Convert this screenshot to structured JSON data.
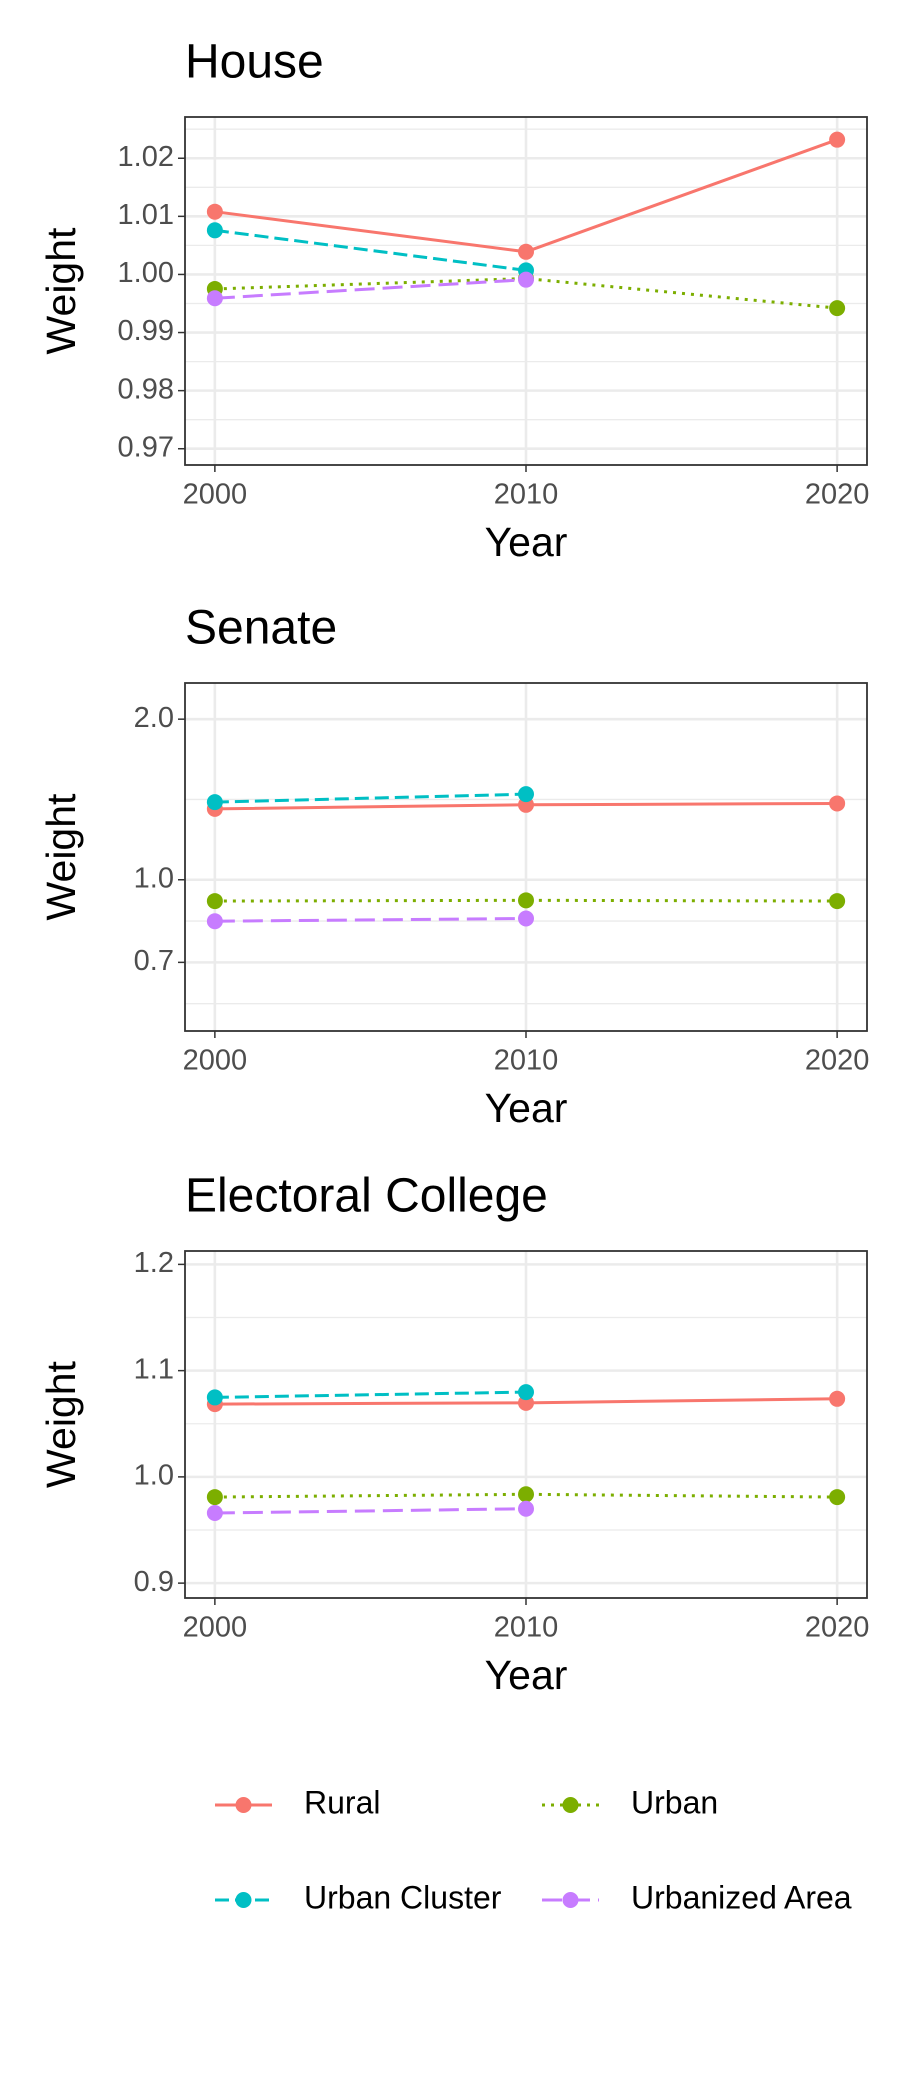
{
  "legend": {
    "position": "bottom",
    "items": [
      {
        "name": "Rural",
        "color": "#F8766D",
        "linetype": "solid"
      },
      {
        "name": "Urban",
        "color": "#7CAE00",
        "linetype": "dotted"
      },
      {
        "name": "Urban Cluster",
        "color": "#00BFC4",
        "linetype": "dashed"
      },
      {
        "name": "Urbanized Area",
        "color": "#C77CFF",
        "linetype": "longdash"
      }
    ]
  },
  "chart_data": [
    {
      "type": "line",
      "title": "House",
      "x_label": "Year",
      "y_label": "Weight",
      "x": [
        2000,
        2010,
        2020
      ],
      "xlim": [
        1999.04,
        2020.96
      ],
      "xticks": [
        2000,
        2010,
        2020
      ],
      "ylim": [
        0.9672,
        1.0271
      ],
      "yticks": [
        0.97,
        0.98,
        0.99,
        {
          "value": 1,
          "label": "1.00"
        },
        1.01,
        1.02
      ],
      "grid": true,
      "series": [
        {
          "values": [
            1.0108,
            1.0039,
            1.0232
          ]
        },
        {
          "values": [
            0.9975,
            0.9993,
            0.9942
          ]
        },
        {
          "values": [
            1.0076,
            1.0007,
            null
          ]
        },
        {
          "values": [
            0.9959,
            0.9991,
            null
          ]
        }
      ]
    },
    {
      "type": "line",
      "title": "Senate",
      "x_label": "Year",
      "y_label": "Weight",
      "x": [
        2000,
        2010,
        2020
      ],
      "xlim": [
        1999.04,
        2020.96
      ],
      "xticks": [
        2000,
        2010,
        2020
      ],
      "ylim": [
        0.5205,
        2.338
      ],
      "yticks": [
        0.7,
        {
          "value": 1,
          "label": "1.0"
        },
        {
          "value": 2,
          "label": "2.0"
        }
      ],
      "log_scale": true,
      "grid": true,
      "series": [
        {
          "values": [
            1.358,
            1.382,
            1.39
          ]
        },
        {
          "values": [
            0.912,
            0.915,
            0.912
          ]
        },
        {
          "values": [
            1.398,
            1.447,
            null
          ]
        },
        {
          "values": [
            0.836,
            0.846,
            null
          ]
        }
      ]
    },
    {
      "type": "line",
      "title": "Electoral College",
      "x_label": "Year",
      "y_label": "Weight",
      "x": [
        2000,
        2010,
        2020
      ],
      "xlim": [
        1999.04,
        2020.96
      ],
      "xticks": [
        2000,
        2010,
        2020
      ],
      "ylim": [
        0.886,
        1.2126
      ],
      "yticks": [
        0.9,
        {
          "value": 1,
          "label": "1.0"
        },
        1.1,
        1.2
      ],
      "grid": true,
      "series": [
        {
          "values": [
            1.0685,
            1.0697,
            1.0735
          ]
        },
        {
          "values": [
            0.981,
            0.9836,
            0.981
          ]
        },
        {
          "values": [
            1.0748,
            1.0798,
            null
          ]
        },
        {
          "values": [
            0.966,
            0.97,
            null
          ]
        }
      ]
    }
  ]
}
